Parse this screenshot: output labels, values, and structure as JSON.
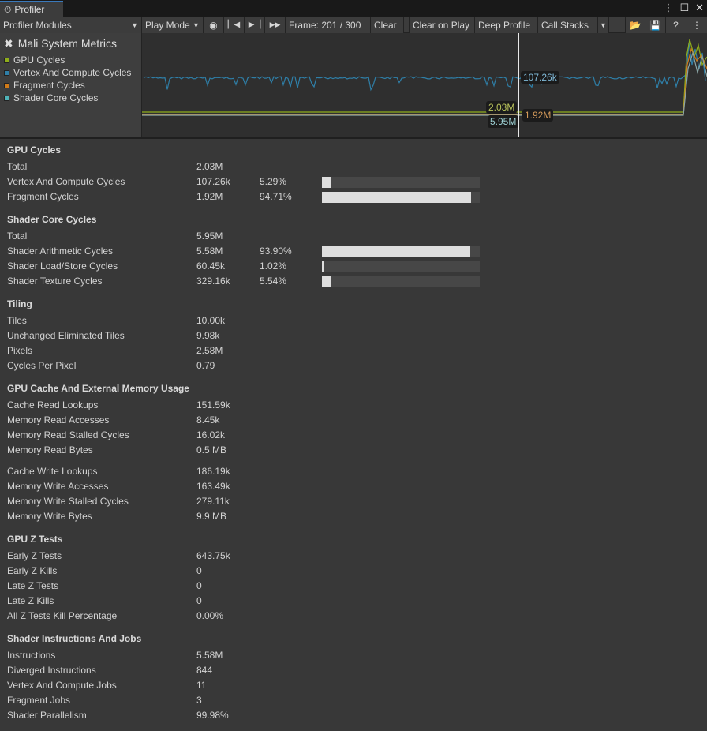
{
  "window": {
    "tab": "Profiler"
  },
  "toolbar": {
    "modules": "Profiler Modules",
    "play_mode": "Play Mode",
    "frame": "Frame: 201 / 300",
    "clear": "Clear",
    "clear_on_play": "Clear on Play",
    "deep_profile": "Deep Profile",
    "call_stacks": "Call Stacks"
  },
  "module": {
    "title": "Mali System Metrics",
    "legend": [
      {
        "label": "GPU Cycles",
        "color": "#8fae1b"
      },
      {
        "label": "Vertex And Compute Cycles",
        "color": "#2f7fa8"
      },
      {
        "label": "Fragment Cycles",
        "color": "#d07a18"
      },
      {
        "label": "Shader Core Cycles",
        "color": "#4fb3b8"
      }
    ]
  },
  "chart": {
    "selected_labels": {
      "vertex": "107.26k",
      "gpu": "2.03M",
      "shader": "5.95M",
      "fragment": "1.92M"
    }
  },
  "sections": [
    {
      "title": "GPU Cycles",
      "groups": [
        [
          {
            "label": "Total",
            "value": "2.03M"
          },
          {
            "label": "Vertex And Compute Cycles",
            "value": "107.26k",
            "pct": "5.29%",
            "fraction": 0.0529
          },
          {
            "label": "Fragment Cycles",
            "value": "1.92M",
            "pct": "94.71%",
            "fraction": 0.9471
          }
        ]
      ]
    },
    {
      "title": "Shader Core Cycles",
      "groups": [
        [
          {
            "label": "Total",
            "value": "5.95M"
          },
          {
            "label": "Shader Arithmetic Cycles",
            "value": "5.58M",
            "pct": "93.90%",
            "fraction": 0.939
          },
          {
            "label": "Shader Load/Store Cycles",
            "value": "60.45k",
            "pct": "1.02%",
            "fraction": 0.0102
          },
          {
            "label": "Shader Texture Cycles",
            "value": "329.16k",
            "pct": "5.54%",
            "fraction": 0.0554
          }
        ]
      ]
    },
    {
      "title": "Tiling",
      "groups": [
        [
          {
            "label": "Tiles",
            "value": "10.00k"
          },
          {
            "label": "Unchanged Eliminated Tiles",
            "value": "9.98k"
          },
          {
            "label": "Pixels",
            "value": "2.58M"
          },
          {
            "label": "Cycles Per Pixel",
            "value": "0.79"
          }
        ]
      ]
    },
    {
      "title": "GPU Cache And External Memory Usage",
      "groups": [
        [
          {
            "label": "Cache Read Lookups",
            "value": "151.59k"
          },
          {
            "label": "Memory Read Accesses",
            "value": "8.45k"
          },
          {
            "label": "Memory Read Stalled Cycles",
            "value": "16.02k"
          },
          {
            "label": "Memory Read Bytes",
            "value": "0.5 MB"
          }
        ],
        [
          {
            "label": "Cache Write Lookups",
            "value": "186.19k"
          },
          {
            "label": "Memory Write Accesses",
            "value": "163.49k"
          },
          {
            "label": "Memory Write Stalled Cycles",
            "value": "279.11k"
          },
          {
            "label": "Memory Write Bytes",
            "value": "9.9 MB"
          }
        ]
      ]
    },
    {
      "title": "GPU Z Tests",
      "groups": [
        [
          {
            "label": "Early Z Tests",
            "value": "643.75k"
          },
          {
            "label": "Early Z Kills",
            "value": "0"
          },
          {
            "label": "Late Z Tests",
            "value": "0"
          },
          {
            "label": "Late Z Kills",
            "value": "0"
          },
          {
            "label": "All Z Tests Kill Percentage",
            "value": "0.00%"
          }
        ]
      ]
    },
    {
      "title": "Shader Instructions And Jobs",
      "groups": [
        [
          {
            "label": "Instructions",
            "value": "5.58M"
          },
          {
            "label": "Diverged Instructions",
            "value": "844"
          },
          {
            "label": "Vertex And Compute Jobs",
            "value": "11"
          },
          {
            "label": "Fragment Jobs",
            "value": "3"
          },
          {
            "label": "Shader Parallelism",
            "value": "99.98%"
          }
        ]
      ]
    }
  ]
}
